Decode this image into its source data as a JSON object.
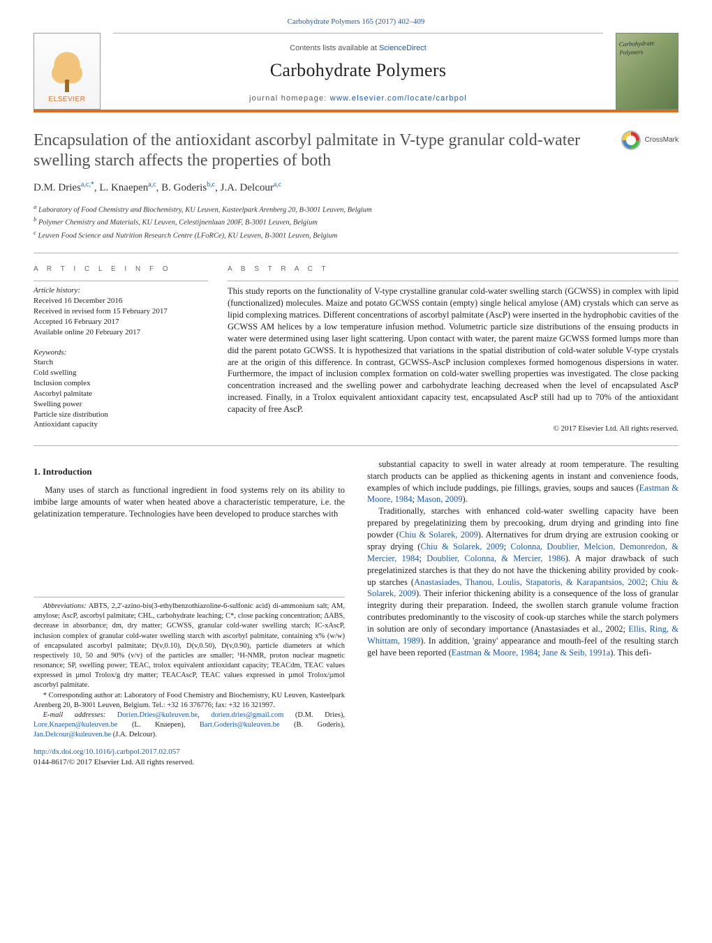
{
  "top_citation": "Carbohydrate Polymers 165 (2017) 402–409",
  "header": {
    "contents_prefix": "Contents lists available at ",
    "contents_link": "ScienceDirect",
    "journal": "Carbohydrate Polymers",
    "homepage_prefix": "journal homepage: ",
    "homepage_url": "www.elsevier.com/locate/carbpol",
    "publisher_name": "ELSEVIER",
    "cover_title": "Carbohydrate Polymers",
    "crossmark": "CrossMark"
  },
  "paper": {
    "title": "Encapsulation of the antioxidant ascorbyl palmitate in V-type granular cold-water swelling starch affects the properties of both",
    "authors_html_parts": [
      {
        "name": "D.M. Dries",
        "sup": "a,c,*"
      },
      {
        "name": "L. Knaepen",
        "sup": "a,c"
      },
      {
        "name": "B. Goderis",
        "sup": "b,c"
      },
      {
        "name": "J.A. Delcour",
        "sup": "a,c"
      }
    ],
    "affiliations": [
      {
        "sup": "a",
        "text": "Laboratory of Food Chemistry and Biochemistry, KU Leuven, Kasteelpark Arenberg 20, B-3001 Leuven, Belgium"
      },
      {
        "sup": "b",
        "text": "Polymer Chemistry and Materials, KU Leuven, Celestijnenlaan 200F, B-3001 Leuven, Belgium"
      },
      {
        "sup": "c",
        "text": "Leuven Food Science and Nutrition Research Centre (LFoRCe), KU Leuven, B-3001 Leuven, Belgium"
      }
    ]
  },
  "article_info": {
    "head": "A R T I C L E   I N F O",
    "history_head": "Article history:",
    "history": [
      "Received 16 December 2016",
      "Received in revised form 15 February 2017",
      "Accepted 16 February 2017",
      "Available online 20 February 2017"
    ],
    "keywords_head": "Keywords:",
    "keywords": [
      "Starch",
      "Cold swelling",
      "Inclusion complex",
      "Ascorbyl palmitate",
      "Swelling power",
      "Particle size distribution",
      "Antioxidant capacity"
    ]
  },
  "abstract": {
    "head": "A B S T R A C T",
    "text": "This study reports on the functionality of V-type crystalline granular cold-water swelling starch (GCWSS) in complex with lipid (functionalized) molecules. Maize and potato GCWSS contain (empty) single helical amylose (AM) crystals which can serve as lipid complexing matrices. Different concentrations of ascorbyl palmitate (AscP) were inserted in the hydrophobic cavities of the GCWSS AM helices by a low temperature infusion method. Volumetric particle size distributions of the ensuing products in water were determined using laser light scattering. Upon contact with water, the parent maize GCWSS formed lumps more than did the parent potato GCWSS. It is hypothesized that variations in the spatial distribution of cold-water soluble V-type crystals are at the origin of this difference. In contrast, GCWSS-AscP inclusion complexes formed homogenous dispersions in water. Furthermore, the impact of inclusion complex formation on cold-water swelling properties was investigated. The close packing concentration increased and the swelling power and carbohydrate leaching decreased when the level of encapsulated AscP increased. Finally, in a Trolox equivalent antioxidant capacity test, encapsulated AscP still had up to 70% of the antioxidant capacity of free AscP.",
    "copyright": "© 2017 Elsevier Ltd. All rights reserved."
  },
  "introduction": {
    "heading": "1.  Introduction",
    "left": "Many uses of starch as functional ingredient in food systems rely on its ability to imbibe large amounts of water when heated above a characteristic temperature, i.e. the gelatinization temperature. Technologies have been developed to produce starches with",
    "right1_text_pre": "substantial capacity to swell in water already at room temperature. The resulting starch products can be applied as thickening agents in instant and convenience foods, examples of which include puddings, pie fillings, gravies, soups and sauces (",
    "right1_links": [
      "Eastman & Moore, 1984",
      "Mason, 2009"
    ],
    "right2_text": "Traditionally, starches with enhanced cold-water swelling capacity have been prepared by pregelatinizing them by precooking, drum drying and grinding into fine powder (",
    "right2_link1": "Chiu & Solarek, 2009",
    "right2_text2": "). Alternatives for drum drying are extrusion cooking or spray drying (",
    "right2_links2": [
      "Chiu & Solarek, 2009",
      "Colonna, Doublier, Melcion, Demonredon, & Mercier, 1984",
      "Doublier, Colonna, & Mercier, 1986"
    ],
    "right2_text3": "). A major drawback of such pregelatinized starches is that they do not have the thickening ability provided by cook-up starches (",
    "right2_links3": [
      "Anastasiades, Thanou, Loulis, Stapatoris, & Karapantsios, 2002",
      "Chiu & Solarek, 2009"
    ],
    "right2_text4": "). Their inferior thickening ability is a consequence of the loss of granular integrity during their preparation. Indeed, the swollen starch granule volume fraction contributes predominantly to the viscosity of cook-up starches while the starch polymers in solution are only of secondary importance (Anastasiades et al., 2002; ",
    "right2_link5": "Ellis, Ring, & Whittam, 1989",
    "right2_text5": "). In addition, 'grainy' appearance and mouth-feel of the resulting starch gel have been reported (",
    "right2_links6": [
      "Eastman & Moore, 1984",
      "Jane & Seib, 1991a"
    ],
    "right2_text6": "). This defi-"
  },
  "footnotes": {
    "abbrev_head": "Abbreviations:",
    "abbrev_text": " ABTS, 2,2'-azino-bis(3-ethylbenzothiazoline-6-sulfonic acid) di-ammonium salt; AM, amylose; AscP, ascorbyl palmitate; CHL, carbohydrate leaching; C*, close packing concentration; ΔABS, decrease in absorbance; dm, dry matter; GCWSS, granular cold-water swelling starch; IC-xAscP, inclusion complex of granular cold-water swelling starch with ascorbyl palmitate, containing x% (w/w) of encapsulated ascorbyl palmitate; D(v,0.10), D(v,0.50), D(v,0.90), particle diameters at which respectively 10, 50 and 90% (v/v) of the particles are smaller; ¹H-NMR, proton nuclear magnetic resonance; SP, swelling power; TEAC, trolox equivalent antioxidant capacity; TEACdm, TEAC values expressed in µmol Trolox/g dry matter; TEACAscP, TEAC values expressed in µmol Trolox/µmol ascorbyl palmitate.",
    "corr": "* Corresponding author at: Laboratory of Food Chemistry and Biochemistry, KU Leuven, Kasteelpark Arenberg 20, B-3001 Leuven, Belgium. Tel.: +32 16 376776; fax: +32 16 321997.",
    "email_head": "E-mail addresses: ",
    "emails": [
      {
        "addr": "Dorien.Dries@kuleuven.be",
        "who": ""
      },
      {
        "addr": "dorien.dries@gmail.com",
        "who": "(D.M. Dries), "
      },
      {
        "addr": "Lore.Knaepen@kuleuven.be",
        "who": " (L. Knaepen), "
      },
      {
        "addr": "Bart.Goderis@kuleuven.be",
        "who": "(B. Goderis), "
      },
      {
        "addr": "Jan.Delcour@kuleuven.be",
        "who": " (J.A. Delcour)."
      }
    ]
  },
  "doi": {
    "url": "http://dx.doi.org/10.1016/j.carbpol.2017.02.057",
    "issn_line": "0144-8617/© 2017 Elsevier Ltd. All rights reserved."
  },
  "colors": {
    "accent": "#e16b1a",
    "link": "#1a5aa8",
    "rule": "#b0b0b0",
    "muted": "#666666"
  }
}
